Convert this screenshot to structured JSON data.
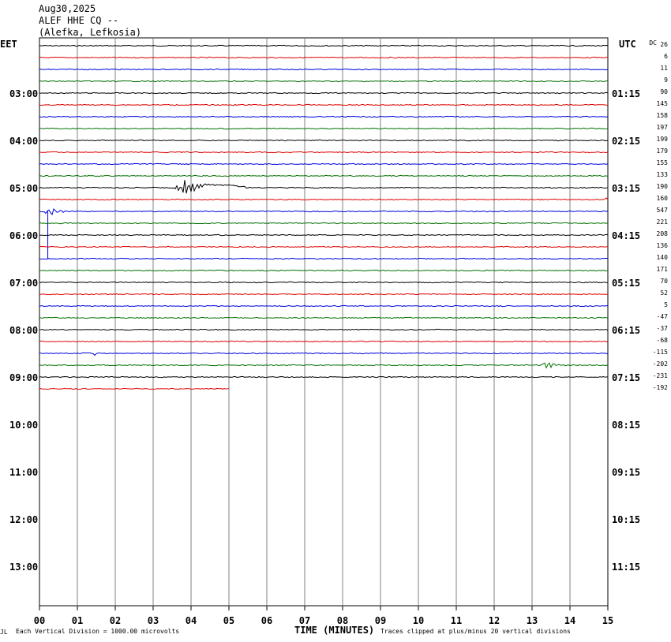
{
  "header": {
    "date": "Aug30,2025",
    "station": "ALEF HHE CQ --",
    "location": "(Alefka, Lefkosia)"
  },
  "left_tz": "EET",
  "right_tz": "UTC",
  "dc_label": "DC",
  "footer": {
    "scale": "Each Vertical Division = 1000.00 microvolts",
    "xlabel": "TIME (MINUTES)",
    "clip": "Traces clipped at plus/minus 20 vertical divisions",
    "corner": "JL"
  },
  "colors": {
    "black": "#000000",
    "red": "#e00000",
    "blue": "#0000e0",
    "green": "#007000",
    "grid": "#808080"
  },
  "chart_data": {
    "type": "line",
    "title": "ALEF HHE CQ --",
    "xlabel": "TIME (MINUTES)",
    "xlim": [
      0,
      15
    ],
    "x_ticks": [
      "00",
      "01",
      "02",
      "03",
      "04",
      "05",
      "06",
      "07",
      "08",
      "09",
      "10",
      "11",
      "12",
      "13",
      "14",
      "15"
    ],
    "left_hour_labels": [
      "03:00",
      "04:00",
      "05:00",
      "06:00",
      "07:00",
      "08:00",
      "09:00",
      "10:00",
      "11:00",
      "12:00",
      "13:00"
    ],
    "right_hour_labels": [
      "01:15",
      "02:15",
      "03:15",
      "04:15",
      "05:15",
      "06:15",
      "07:15",
      "08:15",
      "09:15",
      "10:15",
      "11:15"
    ],
    "dc_offsets": [
      "26",
      "6",
      "11",
      "9",
      "90",
      "145",
      "158",
      "197",
      "199",
      "179",
      "155",
      "133",
      "190",
      "160",
      "547",
      "221",
      "208",
      "136",
      "140",
      "171",
      "70",
      "52",
      "5",
      "-47",
      "-37",
      "-68",
      "-115",
      "-202",
      "-231",
      "-192"
    ],
    "trace_colors": [
      "black",
      "red",
      "blue",
      "green"
    ],
    "traces_drawn": 30,
    "last_trace_end_minute": 5,
    "events": [
      {
        "trace": 12,
        "minute": 3.85,
        "kind": "local event",
        "amplitude": "large"
      },
      {
        "trace": 14,
        "minute": 0.2,
        "kind": "spike",
        "amplitude": "large"
      },
      {
        "trace": 27,
        "minute": 13.3,
        "kind": "event",
        "amplitude": "medium"
      },
      {
        "trace": 26,
        "minute": 1.5,
        "kind": "spike",
        "amplitude": "small"
      },
      {
        "trace": 13,
        "minute": 15.0,
        "kind": "spike",
        "amplitude": "small"
      }
    ]
  }
}
